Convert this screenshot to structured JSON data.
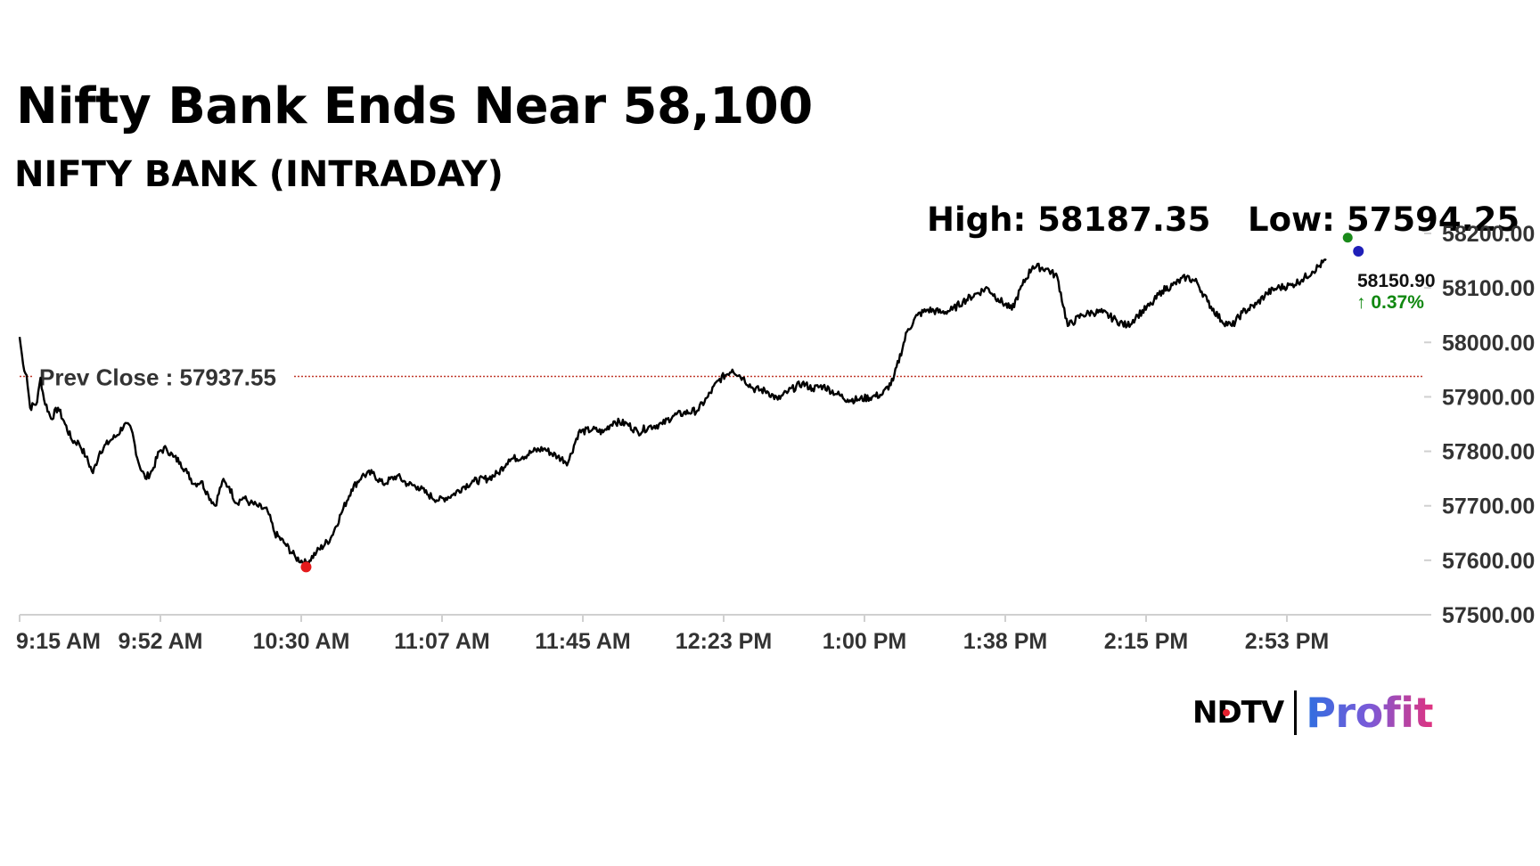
{
  "header": {
    "title": "Nifty Bank Ends Near 58,100",
    "subtitle": "NIFTY BANK (INTRADAY)",
    "high_text": "High: 58187.35",
    "low_text": "Low: 57594.25"
  },
  "logo": {
    "brand": "NDTV",
    "product": "Profit"
  },
  "colors": {
    "line": "#000000",
    "prev_close_line": "#c0392b",
    "low_marker": "#e41a1c",
    "high_marker": "#1a8a1a",
    "last_marker": "#1f1fb8",
    "change_up": "#118811",
    "axis": "#d0d0d0"
  },
  "chart_data": {
    "type": "line",
    "title": "NIFTY BANK (INTRADAY)",
    "xlabel": "",
    "ylabel": "",
    "x_tick_labels": [
      "9:15 AM",
      "9:52 AM",
      "10:30 AM",
      "11:07 AM",
      "11:45 AM",
      "12:23 PM",
      "1:00 PM",
      "1:38 PM",
      "2:15 PM",
      "2:53 PM"
    ],
    "y_tick_labels": [
      "58200.00",
      "58100.00",
      "58000.00",
      "57900.00",
      "57800.00",
      "57700.00",
      "57600.00",
      "57500.00"
    ],
    "ylim": [
      57500,
      58200
    ],
    "prev_close": 57937.55,
    "prev_close_label": "Prev Close : 57937.55",
    "high": 58187.35,
    "low": 57594.25,
    "last_value_label": "58150.90",
    "change_label": "↑ 0.37%",
    "series": [
      {
        "x": [
          0,
          1,
          2,
          3,
          5,
          6,
          7,
          9,
          11,
          13,
          15,
          17,
          19,
          21,
          23,
          26,
          28,
          30,
          32,
          34,
          36,
          38,
          40,
          42,
          44,
          46,
          48,
          50,
          52,
          54,
          56,
          58,
          60,
          62,
          64,
          66,
          68,
          71,
          73,
          76,
          79,
          82,
          85,
          89,
          92,
          95,
          98,
          101,
          104,
          108,
          111,
          114,
          117,
          120,
          124,
          127,
          130,
          134,
          137,
          140,
          144,
          147,
          150,
          154,
          157,
          160,
          164,
          167,
          170,
          174,
          177,
          180,
          184,
          187,
          190,
          194,
          197,
          200,
          204,
          207,
          210,
          214,
          217,
          220,
          224,
          227,
          230,
          234,
          237,
          240,
          244,
          247,
          250,
          254,
          257,
          260,
          264,
          267,
          270,
          274,
          277,
          280,
          284,
          287,
          290,
          294,
          297,
          300,
          304,
          307,
          310,
          314,
          317,
          320,
          324,
          327,
          330,
          334,
          337,
          340,
          344,
          347,
          350,
          354,
          357,
          360,
          364,
          367,
          370,
          374
        ],
        "values": [
          58010,
          57960,
          57940,
          57880,
          57890,
          57935,
          57895,
          57860,
          57880,
          57850,
          57820,
          57815,
          57790,
          57760,
          57800,
          57820,
          57830,
          57850,
          57840,
          57780,
          57750,
          57765,
          57800,
          57805,
          57790,
          57780,
          57760,
          57740,
          57745,
          57720,
          57700,
          57745,
          57735,
          57705,
          57715,
          57705,
          57700,
          57690,
          57650,
          57630,
          57605,
          57594.25,
          57615,
          57640,
          57685,
          57730,
          57755,
          57760,
          57740,
          57755,
          57740,
          57735,
          57720,
          57710,
          57720,
          57735,
          57745,
          57750,
          57760,
          57785,
          57790,
          57800,
          57805,
          57790,
          57780,
          57835,
          57840,
          57835,
          57855,
          57850,
          57835,
          57845,
          57850,
          57865,
          57870,
          57875,
          57900,
          57930,
          57950,
          57935,
          57915,
          57910,
          57895,
          57910,
          57925,
          57915,
          57920,
          57905,
          57895,
          57895,
          57900,
          57905,
          57930,
          58020,
          58050,
          58060,
          58055,
          58060,
          58075,
          58090,
          58100,
          58080,
          58060,
          58105,
          58140,
          58135,
          58120,
          58030,
          58050,
          58055,
          58055,
          58040,
          58030,
          58050,
          58070,
          58095,
          58105,
          58120,
          58110,
          58075,
          58040,
          58030,
          58055,
          58070,
          58090,
          58100,
          58105,
          58115,
          58130,
          58150.9
        ]
      }
    ]
  }
}
